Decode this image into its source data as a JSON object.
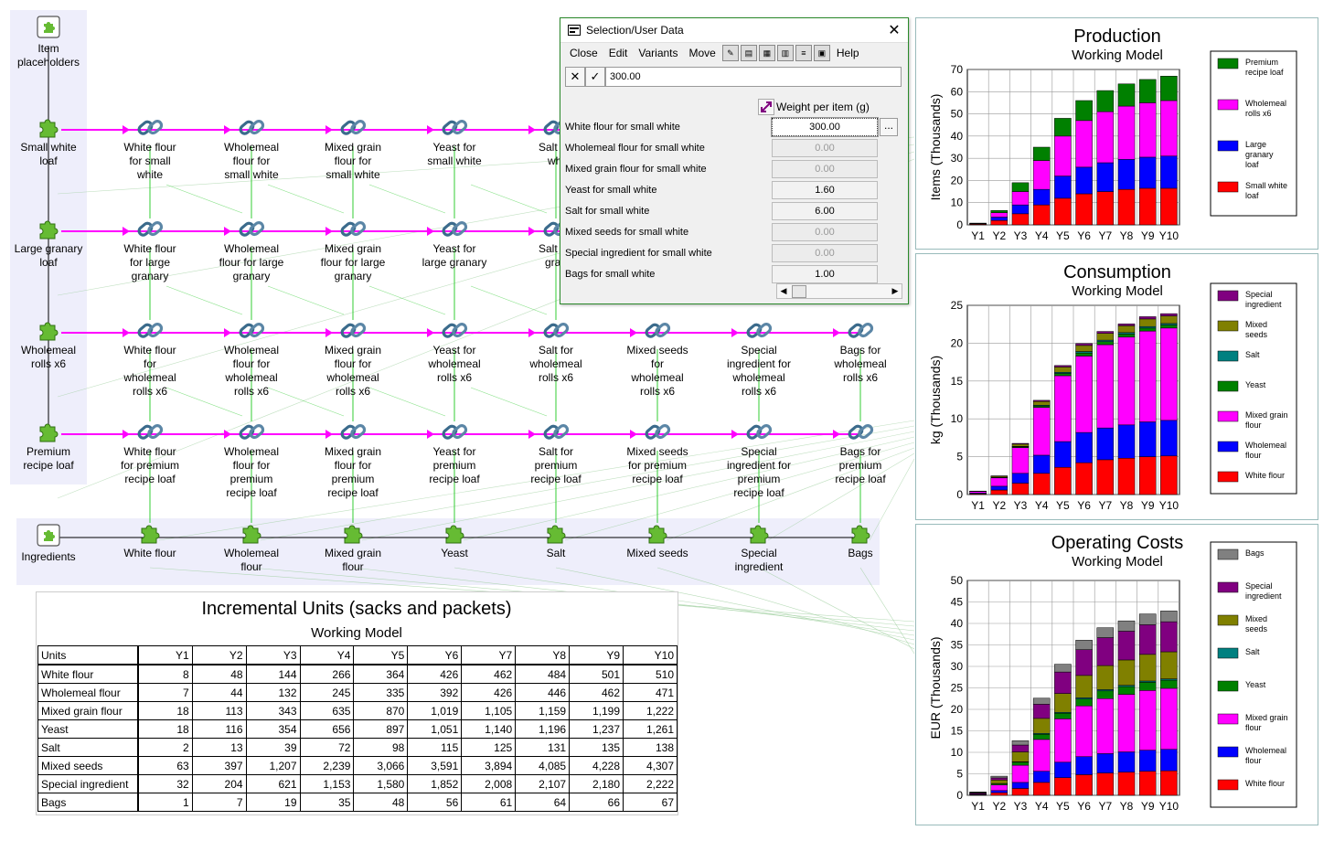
{
  "graph": {
    "placeholder_labels": {
      "items": "Item\nplaceholders",
      "ingredients": "Ingredients"
    },
    "items": [
      "Small white\nloaf",
      "Large granary\nloaf",
      "Wholemeal\nrolls x6",
      "Premium\nrecipe loaf"
    ],
    "link_rows": [
      [
        "White flour\nfor small\nwhite",
        "Wholemeal\nflour for\nsmall white",
        "Mixed grain\nflour for\nsmall white",
        "Yeast for\nsmall white",
        "Salt for\nwhi"
      ],
      [
        "White flour\nfor large\ngranary",
        "Wholemeal\nflour for large\ngranary",
        "Mixed grain\nflour for large\ngranary",
        "Yeast for\nlarge granary",
        "Salt for\ngran"
      ],
      [
        "White flour\nfor\nwholemeal\nrolls x6",
        "Wholemeal\nflour for\nwholemeal\nrolls x6",
        "Mixed grain\nflour for\nwholemeal\nrolls x6",
        "Yeast for\nwholemeal\nrolls x6",
        "Salt for\nwholemeal\nrolls x6",
        "Mixed seeds\nfor\nwholemeal\nrolls x6",
        "Special\ningredient for\nwholemeal\nrolls x6",
        "Bags for\nwholemeal\nrolls x6"
      ],
      [
        "White flour\nfor premium\nrecipe loaf",
        "Wholemeal\nflour for\npremium\nrecipe loaf",
        "Mixed grain\nflour for\npremium\nrecipe loaf",
        "Yeast for\npremium\nrecipe loaf",
        "Salt for\npremium\nrecipe loaf",
        "Mixed seeds\nfor premium\nrecipe loaf",
        "Special\ningredient for\npremium\nrecipe loaf",
        "Bags for\npremium\nrecipe loaf"
      ]
    ],
    "ingredients": [
      "White flour",
      "Wholemeal\nflour",
      "Mixed grain\nflour",
      "Yeast",
      "Salt",
      "Mixed seeds",
      "Special\ningredient",
      "Bags"
    ]
  },
  "dialog": {
    "title": "Selection/User Data",
    "menu": [
      "Close",
      "Edit",
      "Variants",
      "Move",
      "Help"
    ],
    "edit_value": "300.00",
    "column_header": "Weight per item (g)",
    "rows": [
      {
        "name": "White flour for small white",
        "value": "300.00",
        "state": "selected"
      },
      {
        "name": "Wholemeal flour for small white",
        "value": "0.00",
        "state": "disabled"
      },
      {
        "name": "Mixed grain flour for small white",
        "value": "0.00",
        "state": "disabled"
      },
      {
        "name": "Yeast for small white",
        "value": "1.60",
        "state": "enabled"
      },
      {
        "name": "Salt for small white",
        "value": "6.00",
        "state": "enabled"
      },
      {
        "name": "Mixed seeds for small white",
        "value": "0.00",
        "state": "disabled"
      },
      {
        "name": "Special ingredient for small white",
        "value": "0.00",
        "state": "disabled"
      },
      {
        "name": "Bags for small white",
        "value": "1.00",
        "state": "enabled"
      }
    ]
  },
  "chart_data": [
    {
      "type": "bar",
      "stacked": true,
      "title": "Production",
      "subtitle": "Working Model",
      "ylabel": "Items  (Thousands)",
      "ylim": [
        0,
        70
      ],
      "yticks": [
        0,
        10,
        20,
        30,
        40,
        50,
        60,
        70
      ],
      "categories": [
        "Y1",
        "Y2",
        "Y3",
        "Y4",
        "Y5",
        "Y6",
        "Y7",
        "Y8",
        "Y9",
        "Y10"
      ],
      "legend_position": "right",
      "series": [
        {
          "name": "Small white\nloaf",
          "color": "#ff0000",
          "values": [
            0.3,
            2,
            5,
            9,
            12,
            14,
            15,
            16,
            16.5,
            16.5
          ]
        },
        {
          "name": "Large\ngranary\nloaf",
          "color": "#0000ff",
          "values": [
            0.2,
            1.5,
            4,
            7,
            10,
            12,
            13,
            13.5,
            14,
            14.5
          ]
        },
        {
          "name": "Wholemeal\nrolls x6",
          "color": "#ff00ff",
          "values": [
            0.2,
            2,
            6,
            13,
            18,
            21,
            23,
            24,
            24.5,
            25
          ]
        },
        {
          "name": "Premium\nrecipe loaf",
          "color": "#008000",
          "values": [
            0.1,
            1,
            4,
            6,
            8,
            9,
            9.5,
            10,
            10.5,
            11
          ]
        }
      ]
    },
    {
      "type": "bar",
      "stacked": true,
      "title": "Consumption",
      "subtitle": "Working Model",
      "ylabel": "kg  (Thousands)",
      "ylim": [
        0,
        25
      ],
      "yticks": [
        0,
        5,
        10,
        15,
        20,
        25
      ],
      "categories": [
        "Y1",
        "Y2",
        "Y3",
        "Y4",
        "Y5",
        "Y6",
        "Y7",
        "Y8",
        "Y9",
        "Y10"
      ],
      "legend_position": "right",
      "series": [
        {
          "name": "White flour",
          "color": "#ff0000",
          "values": [
            0.1,
            0.6,
            1.5,
            2.8,
            3.6,
            4.2,
            4.6,
            4.8,
            5.0,
            5.1
          ]
        },
        {
          "name": "Wholemeal\nflour",
          "color": "#0000ff",
          "values": [
            0.1,
            0.5,
            1.3,
            2.4,
            3.4,
            4.0,
            4.2,
            4.4,
            4.6,
            4.7
          ]
        },
        {
          "name": "Mixed grain\nflour",
          "color": "#ff00ff",
          "values": [
            0.2,
            1.1,
            3.4,
            6.3,
            8.7,
            10.1,
            11.0,
            11.6,
            12.0,
            12.2
          ]
        },
        {
          "name": "Yeast",
          "color": "#008000",
          "values": [
            0.01,
            0.05,
            0.1,
            0.2,
            0.3,
            0.4,
            0.4,
            0.4,
            0.4,
            0.4
          ]
        },
        {
          "name": "Salt",
          "color": "#008080",
          "values": [
            0.01,
            0.03,
            0.06,
            0.1,
            0.15,
            0.2,
            0.2,
            0.2,
            0.2,
            0.2
          ]
        },
        {
          "name": "Mixed\nseeds",
          "color": "#808000",
          "values": [
            0.03,
            0.15,
            0.3,
            0.5,
            0.7,
            0.8,
            0.9,
            0.9,
            1.0,
            1.0
          ]
        },
        {
          "name": "Special\ningredient",
          "color": "#800080",
          "values": [
            0.01,
            0.04,
            0.1,
            0.15,
            0.2,
            0.25,
            0.25,
            0.25,
            0.3,
            0.3
          ]
        }
      ]
    },
    {
      "type": "bar",
      "stacked": true,
      "title": "Operating Costs",
      "subtitle": "Working Model",
      "ylabel": "EUR  (Thousands)",
      "ylim": [
        0,
        50
      ],
      "yticks": [
        0,
        5,
        10,
        15,
        20,
        25,
        30,
        35,
        40,
        45,
        50
      ],
      "categories": [
        "Y1",
        "Y2",
        "Y3",
        "Y4",
        "Y5",
        "Y6",
        "Y7",
        "Y8",
        "Y9",
        "Y10"
      ],
      "legend_position": "right",
      "series": [
        {
          "name": "White flour",
          "color": "#ff0000",
          "values": [
            0.1,
            0.6,
            1.6,
            3.0,
            4.1,
            4.8,
            5.2,
            5.4,
            5.6,
            5.7
          ]
        },
        {
          "name": "Wholemeal\nflour",
          "color": "#0000ff",
          "values": [
            0.1,
            0.5,
            1.4,
            2.6,
            3.6,
            4.2,
            4.5,
            4.7,
            4.9,
            5.0
          ]
        },
        {
          "name": "Mixed grain\nflour",
          "color": "#ff00ff",
          "values": [
            0.2,
            1.3,
            4.0,
            7.4,
            10.1,
            11.8,
            12.8,
            13.4,
            13.9,
            14.2
          ]
        },
        {
          "name": "Yeast",
          "color": "#008000",
          "values": [
            0.05,
            0.3,
            0.7,
            1.2,
            1.3,
            1.6,
            1.8,
            1.8,
            1.9,
            1.9
          ]
        },
        {
          "name": "Salt",
          "color": "#008080",
          "values": [
            0.01,
            0.05,
            0.1,
            0.2,
            0.2,
            0.3,
            0.3,
            0.3,
            0.3,
            0.3
          ]
        },
        {
          "name": "Mixed\nseeds",
          "color": "#808000",
          "values": [
            0.1,
            0.8,
            2.3,
            3.5,
            4.4,
            5.2,
            5.6,
            5.9,
            6.2,
            6.3
          ]
        },
        {
          "name": "Special\ningredient",
          "color": "#800080",
          "values": [
            0.1,
            0.5,
            1.6,
            3.3,
            5.0,
            6.0,
            6.5,
            6.7,
            6.9,
            7.0
          ]
        },
        {
          "name": "Bags",
          "color": "#808080",
          "values": [
            0.1,
            0.4,
            1.0,
            1.4,
            1.8,
            2.2,
            2.3,
            2.4,
            2.5,
            2.5
          ]
        }
      ]
    },
    {
      "type": "table",
      "title": "Incremental Units (sacks and packets)",
      "subtitle": "Working Model",
      "columns": [
        "Units",
        "Y1",
        "Y2",
        "Y3",
        "Y4",
        "Y5",
        "Y6",
        "Y7",
        "Y8",
        "Y9",
        "Y10"
      ],
      "rows": [
        [
          "White flour",
          "8",
          "48",
          "144",
          "266",
          "364",
          "426",
          "462",
          "484",
          "501",
          "510"
        ],
        [
          "Wholemeal flour",
          "7",
          "44",
          "132",
          "245",
          "335",
          "392",
          "426",
          "446",
          "462",
          "471"
        ],
        [
          "Mixed grain flour",
          "18",
          "113",
          "343",
          "635",
          "870",
          "1,019",
          "1,105",
          "1,159",
          "1,199",
          "1,222"
        ],
        [
          "Yeast",
          "18",
          "116",
          "354",
          "656",
          "897",
          "1,051",
          "1,140",
          "1,196",
          "1,237",
          "1,261"
        ],
        [
          "Salt",
          "2",
          "13",
          "39",
          "72",
          "98",
          "115",
          "125",
          "131",
          "135",
          "138"
        ],
        [
          "Mixed seeds",
          "63",
          "397",
          "1,207",
          "2,239",
          "3,066",
          "3,591",
          "3,894",
          "4,085",
          "4,228",
          "4,307"
        ],
        [
          "Special ingredient",
          "32",
          "204",
          "621",
          "1,153",
          "1,580",
          "1,852",
          "2,008",
          "2,107",
          "2,180",
          "2,222"
        ],
        [
          "Bags",
          "1",
          "7",
          "19",
          "35",
          "48",
          "56",
          "61",
          "64",
          "66",
          "67"
        ]
      ]
    }
  ],
  "colors": {
    "link_arrow": "#ff00ff",
    "link_wire": "#33cc33",
    "band": "#eeeefb"
  }
}
